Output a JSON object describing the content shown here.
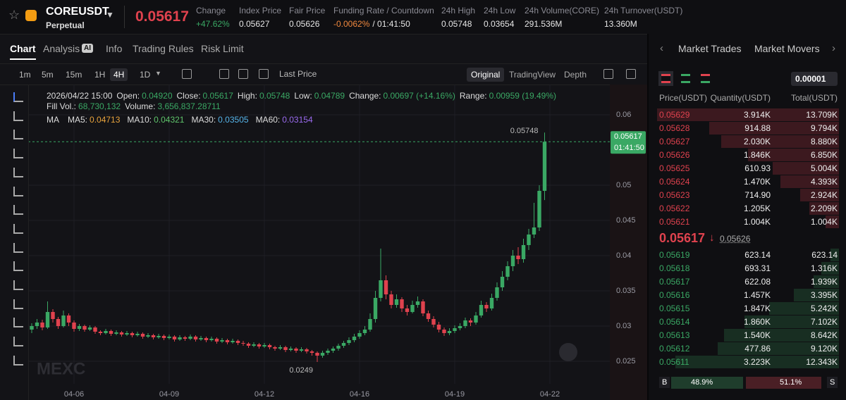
{
  "header": {
    "symbol": "COREUSDT",
    "contract": "Perpetual",
    "last_price": "0.05617",
    "stats": [
      {
        "label": "Change",
        "value": "+47.62%"
      },
      {
        "label": "Index Price",
        "value": "0.05627"
      },
      {
        "label": "Fair Price",
        "value": "0.05626"
      },
      {
        "label": "Funding Rate / Countdown",
        "value": "-0.0062%",
        "value2": "/ 01:41:50"
      },
      {
        "label": "24h High",
        "value": "0.05748"
      },
      {
        "label": "24h Low",
        "value": "0.03654"
      },
      {
        "label": "24h Volume(CORE)",
        "value": "291.536M"
      },
      {
        "label": "24h Turnover(USDT)",
        "value": "13.360M"
      }
    ]
  },
  "tabs": [
    "Chart",
    "Analysis",
    "Info",
    "Trading Rules",
    "Risk Limit"
  ],
  "analysis_badge": "AI",
  "toolbar": {
    "intervals": [
      "1m",
      "5m",
      "15m",
      "1H",
      "4H",
      "1D"
    ],
    "active_interval": 4,
    "price_type": "Last Price",
    "views": [
      "Original",
      "TradingView",
      "Depth"
    ]
  },
  "chart_data": {
    "type": "candlestick",
    "time": "2026/04/22 15:00",
    "info_row1": [
      {
        "label": "Open:",
        "value": "0.04920"
      },
      {
        "label": "Close:",
        "value": "0.05617"
      },
      {
        "label": "High:",
        "value": "0.05748"
      },
      {
        "label": "Low:",
        "value": "0.04789"
      },
      {
        "label": "Change:",
        "value": "0.00697 (+14.16%)"
      },
      {
        "label": "Range:",
        "value": "0.00959 (19.49%)"
      }
    ],
    "info_row2": [
      {
        "label": "Fill Vol.:",
        "value": "68,730,132"
      },
      {
        "label": "Volume:",
        "value": "3,656,837.28711"
      }
    ],
    "ma_title": "MA",
    "ma": [
      {
        "label": "MA5:",
        "value": "0.04713",
        "color": "#e8a33d"
      },
      {
        "label": "MA10:",
        "value": "0.04321",
        "color": "#5fc46b"
      },
      {
        "label": "MA30:",
        "value": "0.03505",
        "color": "#56b4e9"
      },
      {
        "label": "MA60:",
        "value": "0.03154",
        "color": "#9b6bf0"
      }
    ],
    "up_color": "#3aa864",
    "down_color": "#e0424e",
    "grid": true,
    "candles": [
      [
        0.0295,
        0.0304,
        0.029,
        0.03
      ],
      [
        0.03,
        0.031,
        0.0296,
        0.0305
      ],
      [
        0.0305,
        0.0309,
        0.0294,
        0.0298
      ],
      [
        0.0298,
        0.0335,
        0.0296,
        0.032
      ],
      [
        0.032,
        0.0324,
        0.0305,
        0.031
      ],
      [
        0.031,
        0.0313,
        0.0296,
        0.03
      ],
      [
        0.03,
        0.0322,
        0.0298,
        0.0315
      ],
      [
        0.0315,
        0.0318,
        0.03,
        0.0305
      ],
      [
        0.0305,
        0.0308,
        0.0292,
        0.0296
      ],
      [
        0.0296,
        0.0303,
        0.0293,
        0.03
      ],
      [
        0.03,
        0.0302,
        0.0292,
        0.0295
      ],
      [
        0.0295,
        0.0301,
        0.0293,
        0.0298
      ],
      [
        0.0298,
        0.03,
        0.0289,
        0.0292
      ],
      [
        0.0292,
        0.0294,
        0.0287,
        0.029
      ],
      [
        0.029,
        0.0296,
        0.0288,
        0.0293
      ],
      [
        0.0293,
        0.0295,
        0.0286,
        0.0289
      ],
      [
        0.0289,
        0.0294,
        0.0287,
        0.0291
      ],
      [
        0.0291,
        0.0293,
        0.0285,
        0.0288
      ],
      [
        0.0288,
        0.0293,
        0.0286,
        0.029
      ],
      [
        0.029,
        0.0292,
        0.0284,
        0.0287
      ],
      [
        0.0287,
        0.0292,
        0.0285,
        0.0289
      ],
      [
        0.0289,
        0.0291,
        0.0282,
        0.0285
      ],
      [
        0.0285,
        0.029,
        0.0283,
        0.0287
      ],
      [
        0.0287,
        0.0289,
        0.0281,
        0.0284
      ],
      [
        0.0284,
        0.0289,
        0.0282,
        0.0286
      ],
      [
        0.0286,
        0.0288,
        0.028,
        0.0283
      ],
      [
        0.0283,
        0.0288,
        0.0281,
        0.0285
      ],
      [
        0.0285,
        0.0287,
        0.0278,
        0.0281
      ],
      [
        0.0281,
        0.0287,
        0.0279,
        0.0284
      ],
      [
        0.0284,
        0.0286,
        0.0279,
        0.0282
      ],
      [
        0.0282,
        0.0288,
        0.028,
        0.0285
      ],
      [
        0.0285,
        0.0287,
        0.0278,
        0.0281
      ],
      [
        0.0281,
        0.0286,
        0.0279,
        0.0283
      ],
      [
        0.0283,
        0.0285,
        0.0277,
        0.028
      ],
      [
        0.028,
        0.0285,
        0.0278,
        0.0282
      ],
      [
        0.0282,
        0.0284,
        0.0275,
        0.0278
      ],
      [
        0.0278,
        0.0283,
        0.0276,
        0.028
      ],
      [
        0.028,
        0.0282,
        0.0274,
        0.0277
      ],
      [
        0.0277,
        0.0282,
        0.0275,
        0.0279
      ],
      [
        0.0279,
        0.0281,
        0.0273,
        0.0276
      ],
      [
        0.0276,
        0.0279,
        0.0272,
        0.0275
      ],
      [
        0.0275,
        0.0277,
        0.0269,
        0.0272
      ],
      [
        0.0272,
        0.0277,
        0.027,
        0.0274
      ],
      [
        0.0274,
        0.0276,
        0.0268,
        0.0271
      ],
      [
        0.0271,
        0.0276,
        0.0269,
        0.0273
      ],
      [
        0.0273,
        0.0275,
        0.0267,
        0.027
      ],
      [
        0.027,
        0.0272,
        0.0265,
        0.0268
      ],
      [
        0.0268,
        0.0273,
        0.0266,
        0.027
      ],
      [
        0.027,
        0.0272,
        0.0263,
        0.0266
      ],
      [
        0.0266,
        0.0271,
        0.0264,
        0.0268
      ],
      [
        0.0268,
        0.027,
        0.0262,
        0.0265
      ],
      [
        0.0265,
        0.027,
        0.0263,
        0.0267
      ],
      [
        0.0267,
        0.0269,
        0.0261,
        0.0264
      ],
      [
        0.0264,
        0.0266,
        0.0258,
        0.0262
      ],
      [
        0.0262,
        0.0264,
        0.0249,
        0.0258
      ],
      [
        0.0258,
        0.0265,
        0.0255,
        0.0262
      ],
      [
        0.0262,
        0.0268,
        0.0259,
        0.0265
      ],
      [
        0.0265,
        0.0271,
        0.0262,
        0.0268
      ],
      [
        0.0268,
        0.0275,
        0.0265,
        0.0272
      ],
      [
        0.0272,
        0.0279,
        0.0269,
        0.0276
      ],
      [
        0.0276,
        0.0284,
        0.0273,
        0.028
      ],
      [
        0.028,
        0.0289,
        0.0277,
        0.0285
      ],
      [
        0.0285,
        0.0294,
        0.0282,
        0.029
      ],
      [
        0.029,
        0.03,
        0.0287,
        0.0295
      ],
      [
        0.0295,
        0.0318,
        0.0292,
        0.031
      ],
      [
        0.031,
        0.035,
        0.0305,
        0.034
      ],
      [
        0.034,
        0.041,
        0.0335,
        0.0365
      ],
      [
        0.0365,
        0.0372,
        0.0338,
        0.0345
      ],
      [
        0.0345,
        0.035,
        0.0325,
        0.033
      ],
      [
        0.033,
        0.0345,
        0.0326,
        0.0338
      ],
      [
        0.0338,
        0.0341,
        0.032,
        0.0325
      ],
      [
        0.0325,
        0.033,
        0.0315,
        0.032
      ],
      [
        0.032,
        0.0336,
        0.0318,
        0.033
      ],
      [
        0.033,
        0.0342,
        0.0326,
        0.0335
      ],
      [
        0.0335,
        0.0338,
        0.0314,
        0.0318
      ],
      [
        0.0318,
        0.0322,
        0.0306,
        0.031
      ],
      [
        0.031,
        0.0314,
        0.0298,
        0.0302
      ],
      [
        0.0302,
        0.0306,
        0.0291,
        0.0295
      ],
      [
        0.0295,
        0.0298,
        0.0286,
        0.029
      ],
      [
        0.029,
        0.0297,
        0.0287,
        0.0293
      ],
      [
        0.0293,
        0.0301,
        0.029,
        0.0297
      ],
      [
        0.0297,
        0.0304,
        0.0294,
        0.03
      ],
      [
        0.03,
        0.0312,
        0.0297,
        0.0308
      ],
      [
        0.0308,
        0.0311,
        0.03,
        0.0305
      ],
      [
        0.0305,
        0.032,
        0.0302,
        0.0315
      ],
      [
        0.0315,
        0.0336,
        0.0312,
        0.033
      ],
      [
        0.033,
        0.0334,
        0.032,
        0.0325
      ],
      [
        0.0325,
        0.0346,
        0.0322,
        0.034
      ],
      [
        0.034,
        0.0362,
        0.0336,
        0.0355
      ],
      [
        0.0355,
        0.0378,
        0.035,
        0.037
      ],
      [
        0.037,
        0.0392,
        0.0365,
        0.0385
      ],
      [
        0.0385,
        0.0408,
        0.0378,
        0.04
      ],
      [
        0.04,
        0.0412,
        0.0388,
        0.0395
      ],
      [
        0.0395,
        0.0424,
        0.039,
        0.0415
      ],
      [
        0.0415,
        0.0438,
        0.0408,
        0.043
      ],
      [
        0.043,
        0.0475,
        0.0425,
        0.044
      ],
      [
        0.044,
        0.05,
        0.0435,
        0.0492
      ],
      [
        0.0492,
        0.05748,
        0.04789,
        0.05617
      ]
    ],
    "ylim": [
      0.0218,
      0.0643
    ],
    "yticks": [
      0.025,
      0.03,
      0.035,
      0.04,
      0.045,
      0.05,
      0.06
    ],
    "xlim": [
      -0.667,
      109.333
    ],
    "xticks": [
      {
        "value": 8,
        "label": "04-06"
      },
      {
        "value": 26,
        "label": "04-09"
      },
      {
        "value": 44,
        "label": "04-12"
      },
      {
        "value": 62,
        "label": "04-16"
      },
      {
        "value": 80,
        "label": "04-19"
      },
      {
        "value": 98,
        "label": "04-22"
      }
    ],
    "high_label": "0.05748",
    "low_label": "0.0249",
    "last_label": "0.05617",
    "countdown": "01:41:50",
    "watermark": "MEXC"
  },
  "orderbook": {
    "tabs": [
      "Market Trades",
      "Market Movers"
    ],
    "precision": "0.00001",
    "columns": [
      "Price(USDT)",
      "Quantity(USDT)",
      "Total(USDT)"
    ],
    "asks": [
      {
        "price": "0.05629",
        "quantity": "3.914K",
        "total": {
          "value": 13709,
          "label": "13.709K"
        }
      },
      {
        "price": "0.05628",
        "quantity": "914.88",
        "total": {
          "value": 9794,
          "label": "9.794K"
        }
      },
      {
        "price": "0.05627",
        "quantity": "2.030K",
        "total": {
          "value": 8880,
          "label": "8.880K"
        }
      },
      {
        "price": "0.05626",
        "quantity": "1.846K",
        "total": {
          "value": 6850,
          "label": "6.850K"
        }
      },
      {
        "price": "0.05625",
        "quantity": "610.93",
        "total": {
          "value": 5004,
          "label": "5.004K"
        }
      },
      {
        "price": "0.05624",
        "quantity": "1.470K",
        "total": {
          "value": 4393,
          "label": "4.393K"
        }
      },
      {
        "price": "0.05623",
        "quantity": "714.90",
        "total": {
          "value": 2924,
          "label": "2.924K"
        }
      },
      {
        "price": "0.05622",
        "quantity": "1.205K",
        "total": {
          "value": 2209,
          "label": "2.209K"
        }
      },
      {
        "price": "0.05621",
        "quantity": "1.004K",
        "total": {
          "value": 1004,
          "label": "1.004K"
        }
      }
    ],
    "mid_price": "0.05617",
    "mid_index": "0.05626",
    "bids": [
      {
        "price": "0.05619",
        "quantity": "623.14",
        "total": 623.14
      },
      {
        "price": "0.05618",
        "quantity": "693.31",
        "total": {
          "value": 1316,
          "label": "1.316K"
        }
      },
      {
        "price": "0.05617",
        "quantity": "622.08",
        "total": {
          "value": 1939,
          "label": "1.939K"
        }
      },
      {
        "price": "0.05616",
        "quantity": "1.457K",
        "total": {
          "value": 3395,
          "label": "3.395K"
        }
      },
      {
        "price": "0.05615",
        "quantity": "1.847K",
        "total": {
          "value": 5242,
          "label": "5.242K"
        }
      },
      {
        "price": "0.05614",
        "quantity": "1.860K",
        "total": {
          "value": 7102,
          "label": "7.102K"
        }
      },
      {
        "price": "0.05613",
        "quantity": "1.540K",
        "total": {
          "value": 8642,
          "label": "8.642K"
        }
      },
      {
        "price": "0.05612",
        "quantity": "477.86",
        "total": {
          "value": 9120,
          "label": "9.120K"
        }
      },
      {
        "price": "0.05611",
        "quantity": "3.223K",
        "total": {
          "value": 12343,
          "label": "12.343K"
        }
      }
    ],
    "ratio": {
      "buy_label": "B",
      "buy": {
        "value": 48.9,
        "label": "48.9%"
      },
      "sell": {
        "value": 51.1,
        "label": "51.1%"
      },
      "sell_label": "S"
    }
  }
}
